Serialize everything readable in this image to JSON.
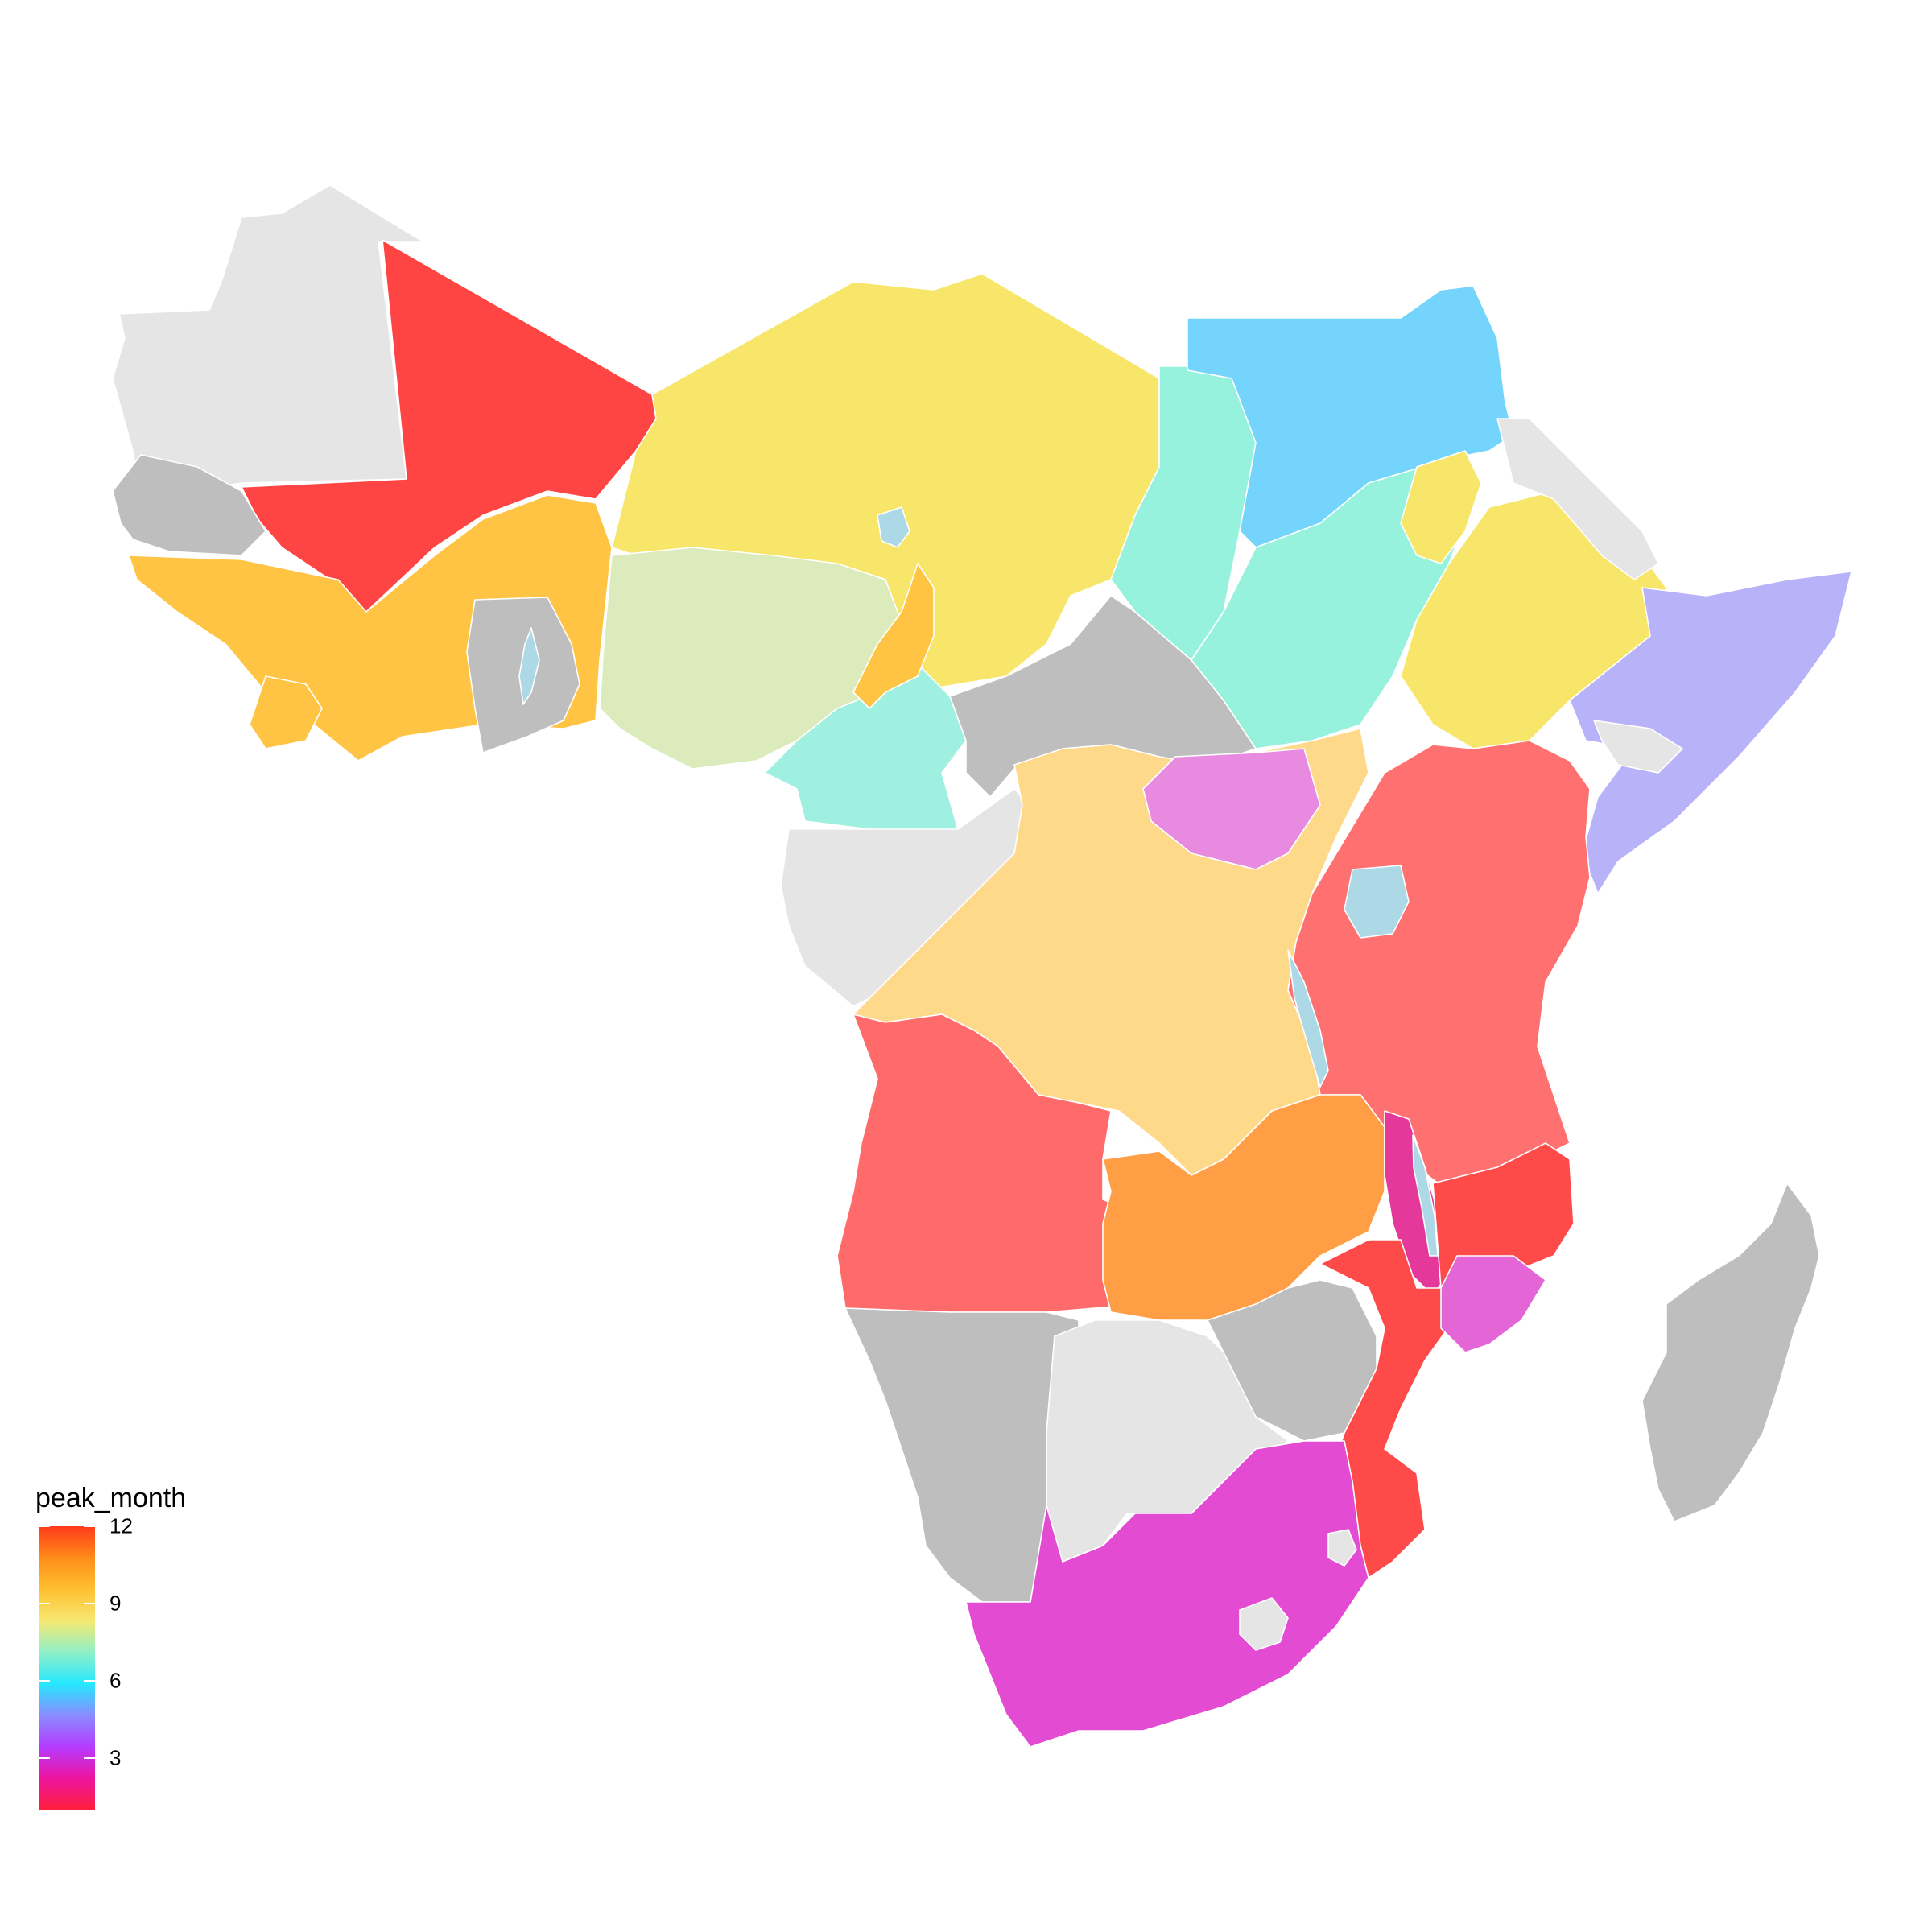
{
  "legend": {
    "title": "peak_month",
    "min": 1,
    "max": 12,
    "ticks": [
      {
        "value": 12,
        "label": "12"
      },
      {
        "value": 9,
        "label": "9"
      },
      {
        "value": 6,
        "label": "6"
      },
      {
        "value": 3,
        "label": "3"
      }
    ],
    "gradient_colors": [
      "#ff1f3d",
      "#ee14a0",
      "#b43cff",
      "#8a8cff",
      "#26e8ff",
      "#8ff0c8",
      "#f6e872",
      "#ffc030",
      "#ff8c1a",
      "#ff3a1a"
    ]
  },
  "colors": {
    "no_data_light": "#e5e5e5",
    "no_data_dark": "#bebebe",
    "water": "#add8e6",
    "border": "#ffffff"
  },
  "regions": [
    {
      "name": "mauritania",
      "peak_month": null,
      "fill": "#e5e5e5"
    },
    {
      "name": "mali",
      "peak_month": 12,
      "fill": "#ff4444"
    },
    {
      "name": "senegal",
      "peak_month": null,
      "fill": "#bebebe"
    },
    {
      "name": "guinea",
      "peak_month": 11,
      "fill": "#ffc444"
    },
    {
      "name": "ghana",
      "peak_month": null,
      "fill": "#bebebe"
    },
    {
      "name": "niger",
      "peak_month": 9,
      "fill": "#f7e66a"
    },
    {
      "name": "nigeria",
      "peak_month": 8,
      "fill": "#dcebbb"
    },
    {
      "name": "cameroon",
      "peak_month": 7,
      "fill": "#9ff0e0"
    },
    {
      "name": "chad",
      "peak_month": 9,
      "fill": "#f7e66a"
    },
    {
      "name": "sudan-west",
      "peak_month": 7,
      "fill": "#96f2dc"
    },
    {
      "name": "sudan-north",
      "peak_month": 6,
      "fill": "#74d4fc"
    },
    {
      "name": "ethiopia",
      "peak_month": 9,
      "fill": "#f7e66a"
    },
    {
      "name": "somalia",
      "peak_month": 5,
      "fill": "#b8b2f8"
    },
    {
      "name": "drc",
      "peak_month": 10,
      "fill": "#ffd98a"
    },
    {
      "name": "kenya-tanzania",
      "peak_month": 12,
      "fill": "#ff7070"
    },
    {
      "name": "angola",
      "peak_month": 12,
      "fill": "#ff6a6a"
    },
    {
      "name": "zambia",
      "peak_month": 11,
      "fill": "#ff9e45"
    },
    {
      "name": "mozambique",
      "peak_month": 12,
      "fill": "#ff4a4a"
    },
    {
      "name": "malawi",
      "peak_month": 2,
      "fill": "#e4399a"
    },
    {
      "name": "south-africa",
      "peak_month": 2,
      "fill": "#e34bd2"
    },
    {
      "name": "namibia",
      "peak_month": null,
      "fill": "#bebebe"
    },
    {
      "name": "botswana",
      "peak_month": null,
      "fill": "#e5e5e5"
    },
    {
      "name": "zimbabwe",
      "peak_month": null,
      "fill": "#bebebe"
    },
    {
      "name": "madagascar",
      "peak_month": null,
      "fill": "#bebebe"
    },
    {
      "name": "gabon-congo",
      "peak_month": null,
      "fill": "#e5e5e5"
    },
    {
      "name": "car",
      "peak_month": null,
      "fill": "#bebebe"
    },
    {
      "name": "eritrea-djibouti",
      "peak_month": null,
      "fill": "#e5e5e5"
    },
    {
      "name": "lake-victoria",
      "peak_month": null,
      "fill": "#add8e6"
    },
    {
      "name": "lake-volta",
      "peak_month": null,
      "fill": "#add8e6"
    },
    {
      "name": "lake-chad",
      "peak_month": null,
      "fill": "#add8e6"
    },
    {
      "name": "lake-tanganyika",
      "peak_month": null,
      "fill": "#add8e6"
    },
    {
      "name": "lake-malawi",
      "peak_month": null,
      "fill": "#add8e6"
    }
  ]
}
